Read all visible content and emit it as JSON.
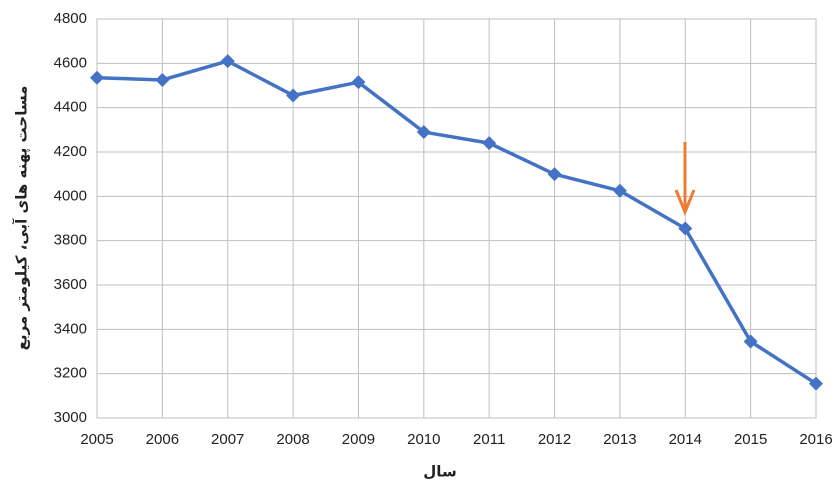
{
  "chart_data": {
    "type": "line",
    "y_label": "مساحت پهنه های آبی، کیلومتر مربع",
    "x_label": "سال",
    "x": [
      2005,
      2006,
      2007,
      2008,
      2009,
      2010,
      2011,
      2012,
      2013,
      2014,
      2015,
      2016
    ],
    "series": [
      {
        "color": "#4472c4",
        "values": [
          4535,
          4525,
          4610,
          4455,
          4515,
          4290,
          4240,
          4100,
          4025,
          3855,
          3345,
          3155
        ]
      }
    ],
    "xlim": [
      2005,
      2016
    ],
    "xticks": [
      2005,
      2006,
      2007,
      2008,
      2009,
      2010,
      2011,
      2012,
      2013,
      2014,
      2015,
      2016
    ],
    "ylim": [
      3000,
      4800
    ],
    "yticks": [
      3000,
      3200,
      3400,
      3600,
      3800,
      4000,
      4200,
      4400,
      4600,
      4800
    ],
    "grid": true
  }
}
